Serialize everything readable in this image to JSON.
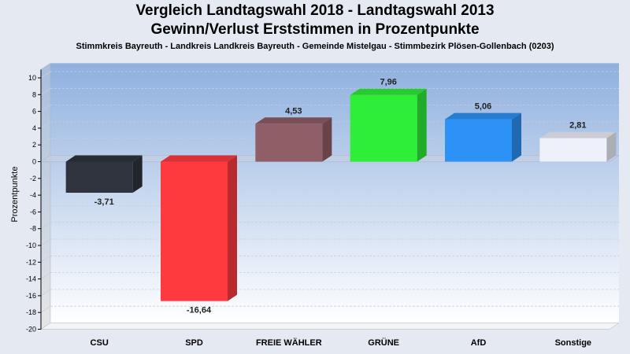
{
  "chart_data": {
    "type": "bar",
    "title": "Vergleich Landtagswahl 2018 - Landtagswahl 2013",
    "subtitle": "Gewinn/Verlust Erststimmen in Prozentpunkte",
    "subtitle2": "Stimmkreis Bayreuth - Landkreis Landkreis Bayreuth - Gemeinde Mistelgau - Stimmbezirk Plösen-Gollenbach (0203)",
    "ylabel": "Prozentpunkte",
    "xlabel": "",
    "ylim": [
      -20,
      11
    ],
    "yticks": [
      10,
      8,
      6,
      4,
      2,
      0,
      -2,
      -4,
      -6,
      -8,
      -10,
      -12,
      -14,
      -16,
      -18,
      -20
    ],
    "grid": true,
    "categories": [
      "CSU",
      "SPD",
      "FREIE WÄHLER",
      "GRÜNE",
      "AfD",
      "Sonstige"
    ],
    "values": [
      -3.71,
      -16.64,
      4.53,
      7.96,
      5.06,
      2.81
    ],
    "labels": [
      "-3,71",
      "-16,64",
      "4,53",
      "7,96",
      "5,06",
      "2,81"
    ],
    "colors": [
      "#2e333d",
      "#ff3a3f",
      "#905e66",
      "#2fee37",
      "#2d92f5",
      "#eef1fa"
    ]
  }
}
